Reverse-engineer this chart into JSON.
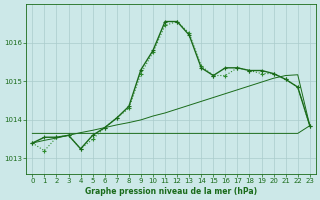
{
  "title": "Graphe pression niveau de la mer (hPa)",
  "bg_color": "#cce8e8",
  "grid_color": "#aacccc",
  "line_dark": "#1a6b1a",
  "line_light": "#2d8b2d",
  "xlim": [
    -0.5,
    23.5
  ],
  "ylim": [
    1012.6,
    1017.0
  ],
  "yticks": [
    1013,
    1014,
    1015,
    1016
  ],
  "xticks": [
    0,
    1,
    2,
    3,
    4,
    5,
    6,
    7,
    8,
    9,
    10,
    11,
    12,
    13,
    14,
    15,
    16,
    17,
    18,
    19,
    20,
    21,
    22,
    23
  ],
  "series_dotted": [
    1013.4,
    1013.2,
    1013.55,
    1013.6,
    1013.25,
    1013.5,
    1013.8,
    1014.05,
    1014.3,
    1015.2,
    1015.75,
    1016.45,
    1016.55,
    1016.25,
    1015.4,
    1015.15,
    1015.15,
    1015.35,
    1015.28,
    1015.2,
    1015.2,
    1015.05,
    1014.85,
    1013.85
  ],
  "series_solid": [
    1013.4,
    1013.55,
    1013.55,
    1013.6,
    1013.25,
    1013.6,
    1013.8,
    1014.05,
    1014.35,
    1015.3,
    1015.8,
    1016.55,
    1016.55,
    1016.2,
    1015.35,
    1015.15,
    1015.35,
    1015.35,
    1015.28,
    1015.28,
    1015.2,
    1015.05,
    1014.85,
    1013.85
  ],
  "series_flat": [
    1013.65,
    1013.65,
    1013.65,
    1013.65,
    1013.65,
    1013.65,
    1013.65,
    1013.65,
    1013.65,
    1013.65,
    1013.65,
    1013.65,
    1013.65,
    1013.65,
    1013.65,
    1013.65,
    1013.65,
    1013.65,
    1013.65,
    1013.65,
    1013.65,
    1013.65,
    1013.65,
    1013.85
  ],
  "series_trend": [
    1013.4,
    1013.47,
    1013.53,
    1013.6,
    1013.67,
    1013.73,
    1013.8,
    1013.87,
    1013.93,
    1014.0,
    1014.1,
    1014.18,
    1014.28,
    1014.38,
    1014.48,
    1014.58,
    1014.68,
    1014.78,
    1014.88,
    1014.98,
    1015.08,
    1015.15,
    1015.17,
    1013.85
  ]
}
